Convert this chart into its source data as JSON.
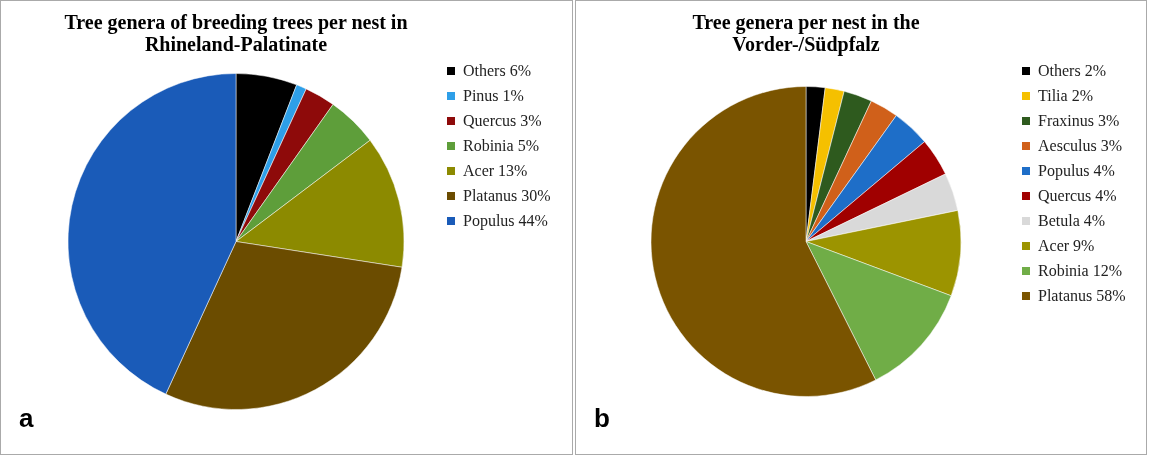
{
  "chart_data": [
    {
      "type": "pie",
      "title": "Tree genera of breeding trees per nest in Rhineland-Palatinate",
      "legend": "right",
      "annotations": [
        "a"
      ],
      "categories": [
        "Others 6%",
        "Pinus 1%",
        "Quercus 3%",
        "Robinia 5%",
        "Acer 13%",
        "Platanus 30%",
        "Populus 44%"
      ],
      "values": [
        6,
        1,
        3,
        5,
        13,
        30,
        44
      ],
      "colors": [
        "#000000",
        "#2e9fe8",
        "#8e0a0a",
        "#5e9e3a",
        "#8c8a00",
        "#6b4c00",
        "#1a5bb8"
      ]
    },
    {
      "type": "pie",
      "title": "Tree genera per nest in the Vorder-/Südpfalz",
      "legend": "right",
      "annotations": [
        "b"
      ],
      "categories": [
        "Others 2%",
        "Tilia 2%",
        "Fraxinus 3%",
        "Aesculus 3%",
        "Populus 4%",
        "Quercus 4%",
        "Betula 4%",
        "Acer 9%",
        "Robinia 12%",
        "Platanus 58%"
      ],
      "values": [
        2,
        2,
        3,
        3,
        4,
        4,
        4,
        9,
        12,
        58
      ],
      "colors": [
        "#000000",
        "#f5c000",
        "#2e5a1e",
        "#d0601a",
        "#1e6ec8",
        "#a00000",
        "#d9d9d9",
        "#9c9400",
        "#70ad47",
        "#7a5400"
      ]
    }
  ]
}
